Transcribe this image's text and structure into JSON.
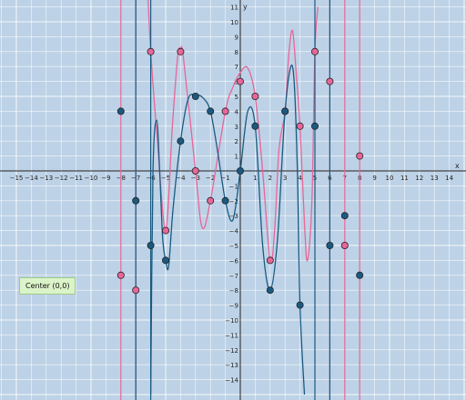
{
  "chart_data": {
    "type": "line",
    "xlabel": "x",
    "ylabel": "y",
    "xlim": [
      -16,
      15
    ],
    "ylim": [
      -15,
      11
    ],
    "x_ticks": [
      -15,
      -14,
      -13,
      -12,
      -11,
      -10,
      -9,
      -8,
      -7,
      -6,
      -5,
      -4,
      -3,
      -2,
      -1,
      1,
      2,
      3,
      4,
      5,
      6,
      7,
      8,
      9,
      10,
      11,
      12,
      13,
      14
    ],
    "y_ticks": [
      -14,
      -13,
      -12,
      -11,
      -10,
      -9,
      -8,
      -7,
      -6,
      -5,
      -4,
      -3,
      -2,
      -1,
      1,
      2,
      3,
      4,
      5,
      6,
      7,
      8,
      9,
      10,
      11
    ],
    "grid": true,
    "colors": {
      "pink": "#e8669a",
      "blue": "#1a5a82",
      "grid": "#ffffff",
      "background": "#bdd2e6"
    },
    "series": [
      {
        "color": "#e8669a",
        "vertical_asymptotes": [
          -8,
          -7,
          6,
          7,
          8
        ],
        "points": [
          [
            -8,
            -7
          ],
          [
            -7,
            -8
          ],
          [
            -6,
            8
          ],
          [
            -5,
            -4
          ],
          [
            -4,
            8
          ],
          [
            -3,
            0
          ],
          [
            -2,
            -2
          ],
          [
            -1,
            4
          ],
          [
            0,
            6
          ],
          [
            1,
            5
          ],
          [
            2,
            -6
          ],
          [
            3,
            4
          ],
          [
            4,
            3
          ],
          [
            5,
            8
          ],
          [
            6,
            6
          ],
          [
            7,
            -5
          ],
          [
            8,
            1
          ]
        ],
        "curve": [
          [
            -6.2,
            12
          ],
          [
            -6,
            8
          ],
          [
            -5.55,
            2
          ],
          [
            -5,
            -4
          ],
          [
            -4.55,
            3
          ],
          [
            -4.2,
            7.6
          ],
          [
            -4,
            8.2
          ],
          [
            -3.8,
            7.5
          ],
          [
            -3,
            0
          ],
          [
            -2.55,
            -3.8
          ],
          [
            -2,
            -2
          ],
          [
            -1,
            4
          ],
          [
            -0.5,
            5.6
          ],
          [
            0,
            6.6
          ],
          [
            0.5,
            6.9
          ],
          [
            1,
            5
          ],
          [
            1.5,
            0
          ],
          [
            2,
            -6
          ],
          [
            2.3,
            -4
          ],
          [
            2.6,
            1.5
          ],
          [
            3,
            4
          ],
          [
            3.25,
            7.8
          ],
          [
            3.5,
            9.4
          ],
          [
            3.75,
            6.5
          ],
          [
            4,
            3
          ],
          [
            4.3,
            -3.5
          ],
          [
            4.5,
            -6
          ],
          [
            4.8,
            -2
          ],
          [
            5,
            8
          ],
          [
            5.2,
            11
          ]
        ]
      },
      {
        "color": "#1a5a82",
        "vertical_asymptotes": [
          -7,
          -6,
          5,
          6
        ],
        "points": [
          [
            -8,
            4
          ],
          [
            -7,
            -2
          ],
          [
            -6,
            -5
          ],
          [
            -5,
            -6
          ],
          [
            -4,
            2
          ],
          [
            -3,
            5
          ],
          [
            -2,
            4
          ],
          [
            -1,
            -2
          ],
          [
            0,
            0
          ],
          [
            1,
            3
          ],
          [
            2,
            -8
          ],
          [
            3,
            4
          ],
          [
            4,
            -9
          ],
          [
            5,
            3
          ],
          [
            6,
            -5
          ],
          [
            7,
            -3
          ],
          [
            8,
            -7
          ]
        ],
        "curve": [
          [
            -6,
            -15
          ],
          [
            -5.85,
            0
          ],
          [
            -5.6,
            3.4
          ],
          [
            -5.4,
            0
          ],
          [
            -5.2,
            -4.5
          ],
          [
            -5,
            -6
          ],
          [
            -4.8,
            -6.4
          ],
          [
            -4.5,
            -2.5
          ],
          [
            -4,
            2
          ],
          [
            -3.5,
            4.8
          ],
          [
            -3,
            5.1
          ],
          [
            -2.5,
            4.9
          ],
          [
            -2,
            4
          ],
          [
            -1.5,
            1.2
          ],
          [
            -1,
            -2
          ],
          [
            -0.5,
            -3.3
          ],
          [
            0,
            0
          ],
          [
            0.5,
            4
          ],
          [
            1,
            3
          ],
          [
            1.5,
            -5
          ],
          [
            2,
            -8
          ],
          [
            2.5,
            -4.5
          ],
          [
            3,
            4
          ],
          [
            3.5,
            7
          ],
          [
            3.8,
            1
          ],
          [
            4,
            -9
          ],
          [
            4.3,
            -15
          ]
        ]
      }
    ]
  },
  "center_label": "Center (0,0)"
}
